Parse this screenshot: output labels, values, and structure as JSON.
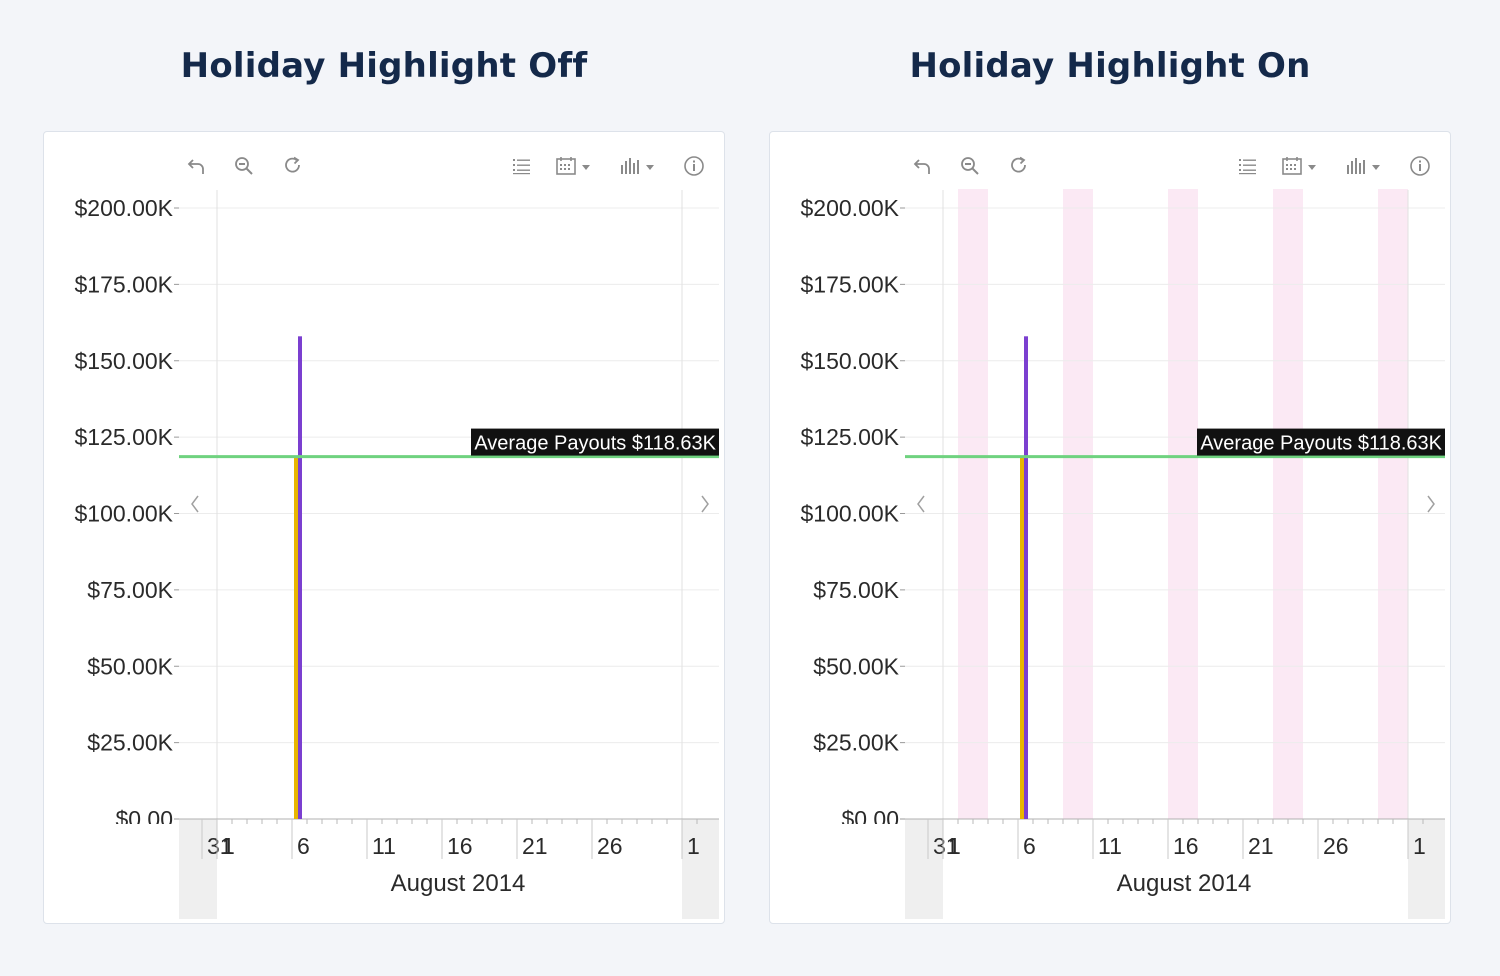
{
  "panels": [
    {
      "title": "Holiday Highlight Off",
      "holiday_highlight": false,
      "chart_data": {
        "type": "bar",
        "y_ticks": [
          "$200.00K",
          "$175.00K",
          "$150.00K",
          "$125.00K",
          "$100.00K",
          "$75.00K",
          "$50.00K",
          "$25.00K",
          "$0.00"
        ],
        "ylim": [
          0,
          200000
        ],
        "x_tick_labels": [
          "31",
          "1",
          "6",
          "11",
          "16",
          "21",
          "26",
          "1"
        ],
        "xlabel": "August 2014",
        "series": [
          {
            "color": "#7b3fd0",
            "points": [
              {
                "x": "2014-08-07",
                "y": 158000
              }
            ]
          },
          {
            "color": "#e8b600",
            "points": [
              {
                "x": "2014-08-07",
                "y": 118630
              }
            ]
          }
        ],
        "average_line": {
          "label": "Average Payouts $118.63K",
          "value": 118630,
          "color": "#6fd27f"
        },
        "holiday_bands": []
      }
    },
    {
      "title": "Holiday Highlight On",
      "holiday_highlight": true,
      "chart_data": {
        "type": "bar",
        "y_ticks": [
          "$200.00K",
          "$175.00K",
          "$150.00K",
          "$125.00K",
          "$100.00K",
          "$75.00K",
          "$50.00K",
          "$25.00K",
          "$0.00"
        ],
        "ylim": [
          0,
          200000
        ],
        "x_tick_labels": [
          "31",
          "1",
          "6",
          "11",
          "16",
          "21",
          "26",
          "1"
        ],
        "xlabel": "August 2014",
        "series": [
          {
            "color": "#7b3fd0",
            "points": [
              {
                "x": "2014-08-07",
                "y": 158000
              }
            ]
          },
          {
            "color": "#e8b600",
            "points": [
              {
                "x": "2014-08-07",
                "y": 118630
              }
            ]
          }
        ],
        "average_line": {
          "label": "Average Payouts $118.63K",
          "value": 118630,
          "color": "#6fd27f"
        },
        "holiday_bands": [
          {
            "from": "2014-08-02",
            "to": "2014-08-03"
          },
          {
            "from": "2014-08-09",
            "to": "2014-08-10"
          },
          {
            "from": "2014-08-16",
            "to": "2014-08-17"
          },
          {
            "from": "2014-08-23",
            "to": "2014-08-24"
          },
          {
            "from": "2014-08-30",
            "to": "2014-08-31"
          }
        ]
      }
    }
  ],
  "toolbar": {
    "icons": [
      "undo-icon",
      "zoom-out-icon",
      "refresh-icon",
      "list-icon",
      "calendar-icon",
      "bar-chart-icon",
      "info-icon"
    ],
    "icon_color": "#8a8a8a"
  },
  "colors": {
    "title": "#14294a",
    "holiday_band": "#fbe9f4",
    "out_of_range": "#efefef"
  }
}
